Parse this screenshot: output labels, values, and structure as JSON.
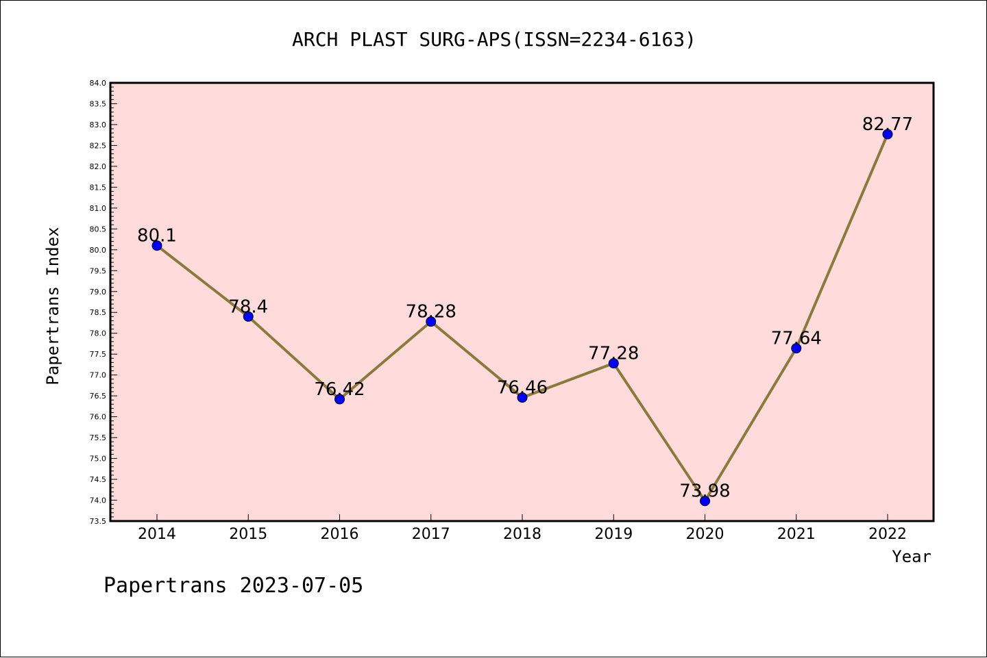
{
  "chart_data": {
    "type": "line",
    "title": "ARCH PLAST SURG-APS(ISSN=2234-6163)",
    "xlabel": "Year",
    "ylabel": "Papertrans Index",
    "categories": [
      "2014",
      "2015",
      "2016",
      "2017",
      "2018",
      "2019",
      "2020",
      "2021",
      "2022"
    ],
    "values": [
      80.1,
      78.4,
      76.42,
      78.28,
      76.46,
      77.28,
      73.98,
      77.64,
      82.77
    ],
    "data_labels": [
      "80.1",
      "78.4",
      "76.42",
      "78.28",
      "76.46",
      "77.28",
      "73.98",
      "77.64",
      "82.77"
    ],
    "ylim": [
      73.5,
      84.0
    ],
    "y_ticks": [
      "73.5",
      "74.0",
      "74.5",
      "75.0",
      "75.5",
      "76.0",
      "76.5",
      "77.0",
      "77.5",
      "78.0",
      "78.5",
      "79.0",
      "79.5",
      "80.0",
      "80.5",
      "81.0",
      "81.5",
      "82.0",
      "82.5",
      "83.0",
      "83.5",
      "84.0"
    ],
    "grid": false,
    "legend": "none",
    "colors": {
      "plot_background": "#ffdcdb",
      "line": "#8c7a3c",
      "marker": "#0000ff"
    }
  },
  "footer": {
    "caption": "Papertrans 2023-07-05"
  }
}
